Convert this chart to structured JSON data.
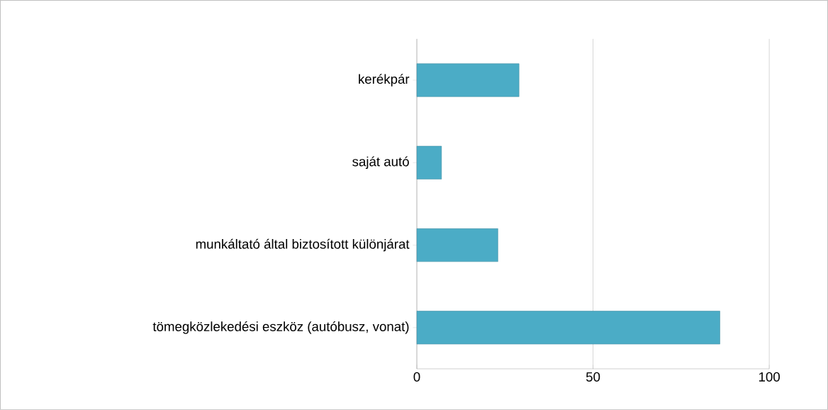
{
  "chart_data": {
    "type": "bar",
    "orientation": "horizontal",
    "categories": [
      "kerékpár",
      "saját autó",
      "munkáltató által biztosított különjárat",
      "tömegközlekedési eszköz (autóbusz, vonat)"
    ],
    "values": [
      29,
      7,
      23,
      86
    ],
    "color": "#4bacc6",
    "xlim": [
      0,
      100
    ],
    "xticks": [
      0,
      50,
      100
    ],
    "grid": "x"
  }
}
